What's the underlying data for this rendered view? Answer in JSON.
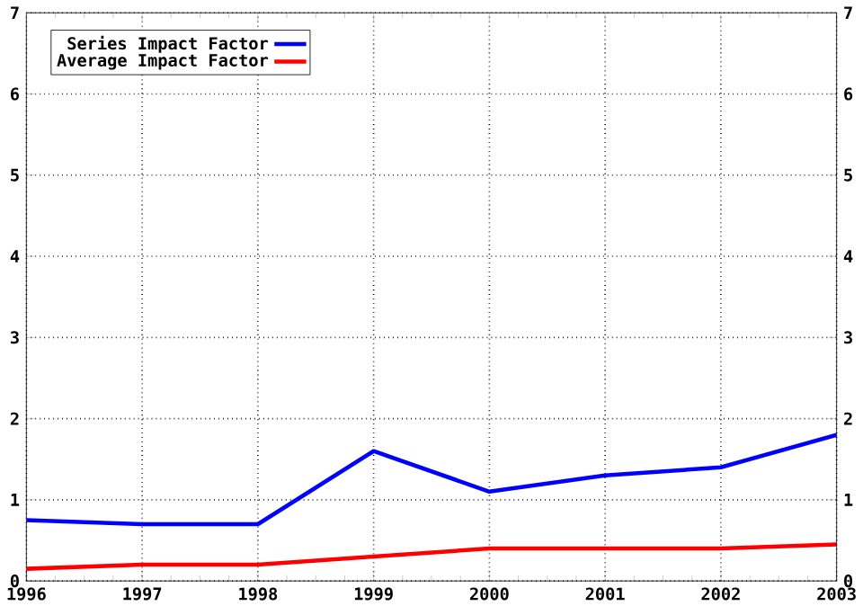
{
  "chart_data": {
    "type": "line",
    "x": [
      1996,
      1997,
      1998,
      1999,
      2000,
      2001,
      2002,
      2003
    ],
    "series": [
      {
        "name": "Series Impact Factor",
        "color": "#0000ff",
        "values": [
          0.75,
          0.7,
          0.7,
          1.6,
          1.1,
          1.3,
          1.4,
          1.8
        ]
      },
      {
        "name": "Average Impact Factor",
        "color": "#ff0000",
        "values": [
          0.15,
          0.2,
          0.2,
          0.3,
          0.4,
          0.4,
          0.4,
          0.45
        ]
      }
    ],
    "xlim": [
      1996,
      2003
    ],
    "xticks": [
      1996,
      1997,
      1998,
      1999,
      2000,
      2001,
      2002,
      2003
    ],
    "ylim": [
      0,
      7
    ],
    "yticks": [
      0,
      1,
      2,
      3,
      4,
      5,
      6,
      7
    ],
    "y2lim": [
      0,
      7
    ],
    "y2ticks": [
      0,
      1,
      2,
      3,
      4,
      5,
      6,
      7
    ],
    "grid": true,
    "legend": "top left",
    "marker": "none",
    "line_style": "solid"
  }
}
